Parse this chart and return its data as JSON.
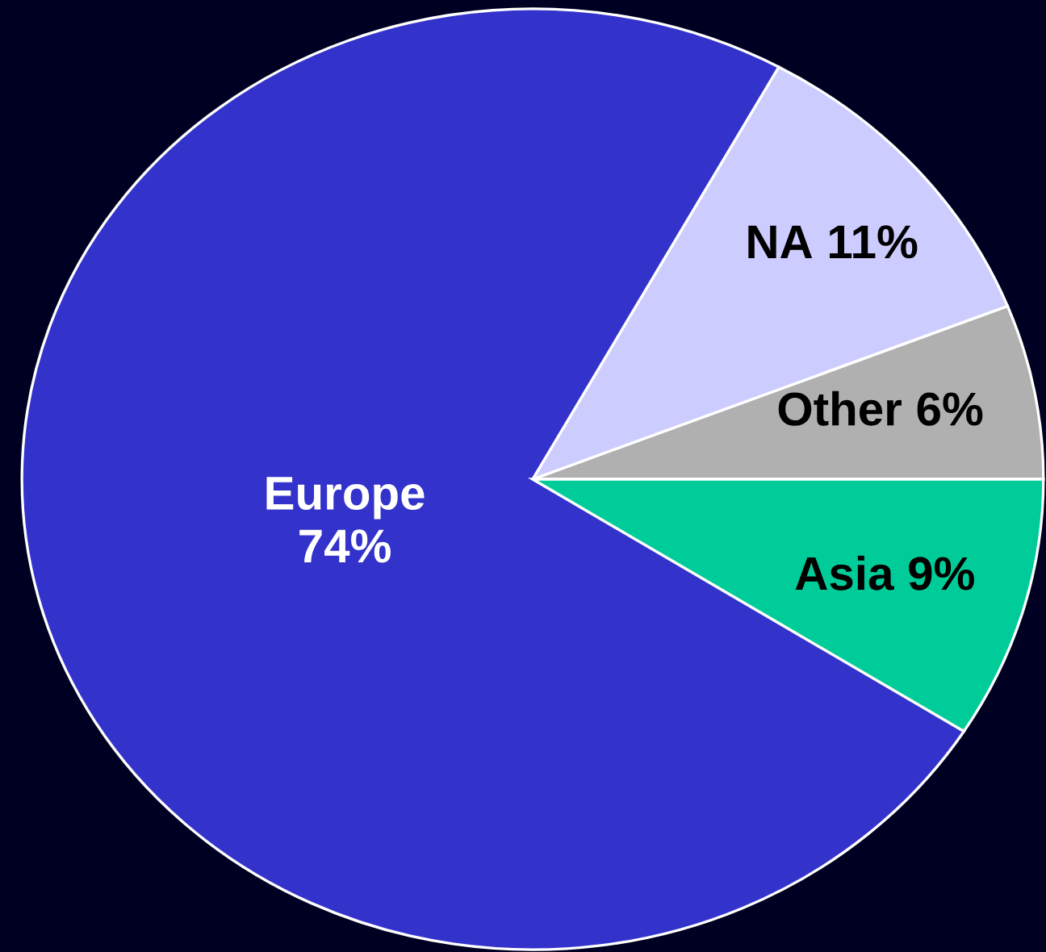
{
  "chart_data": {
    "type": "pie",
    "categories": [
      "Other",
      "NA",
      "Europe",
      "Asia"
    ],
    "values": [
      6,
      11,
      74,
      9
    ],
    "colors": [
      "#b0b0b0",
      "#ccccff",
      "#3333cc",
      "#00cc99"
    ],
    "value_labels": [
      "6%",
      "11%",
      "74%",
      "9%"
    ]
  }
}
